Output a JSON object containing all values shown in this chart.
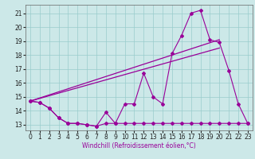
{
  "xlabel": "Windchill (Refroidissement éolien,°C)",
  "xlim": [
    -0.5,
    23.5
  ],
  "ylim": [
    12.6,
    21.6
  ],
  "yticks": [
    13,
    14,
    15,
    16,
    17,
    18,
    19,
    20,
    21
  ],
  "xticks": [
    0,
    1,
    2,
    3,
    4,
    5,
    6,
    7,
    8,
    9,
    10,
    11,
    12,
    13,
    14,
    15,
    16,
    17,
    18,
    19,
    20,
    21,
    22,
    23
  ],
  "background_color": "#cce8e8",
  "grid_color": "#99cccc",
  "line_color": "#990099",
  "hours": [
    0,
    1,
    2,
    3,
    4,
    5,
    6,
    7,
    8,
    9,
    10,
    11,
    12,
    13,
    14,
    15,
    16,
    17,
    18,
    19,
    20,
    21,
    22,
    23
  ],
  "temp_line": [
    14.7,
    14.6,
    14.2,
    13.5,
    13.1,
    13.1,
    13.0,
    12.9,
    13.9,
    13.1,
    14.5,
    14.5,
    16.7,
    15.0,
    14.5,
    18.1,
    19.4,
    21.0,
    21.2,
    19.1,
    18.9,
    16.9,
    14.5,
    13.1
  ],
  "min_line": [
    14.7,
    14.6,
    14.2,
    13.5,
    13.1,
    13.1,
    13.0,
    12.9,
    13.1,
    13.1,
    13.1,
    13.1,
    13.1,
    13.1,
    13.1,
    13.1,
    13.1,
    13.1,
    13.1,
    13.1,
    13.1,
    13.1,
    13.1,
    13.1
  ],
  "trend1_x": [
    0,
    20
  ],
  "trend1_y": [
    14.7,
    19.1
  ],
  "trend2_x": [
    0,
    20
  ],
  "trend2_y": [
    14.7,
    18.5
  ],
  "tick_fontsize": 5.5,
  "xlabel_fontsize": 5.5
}
